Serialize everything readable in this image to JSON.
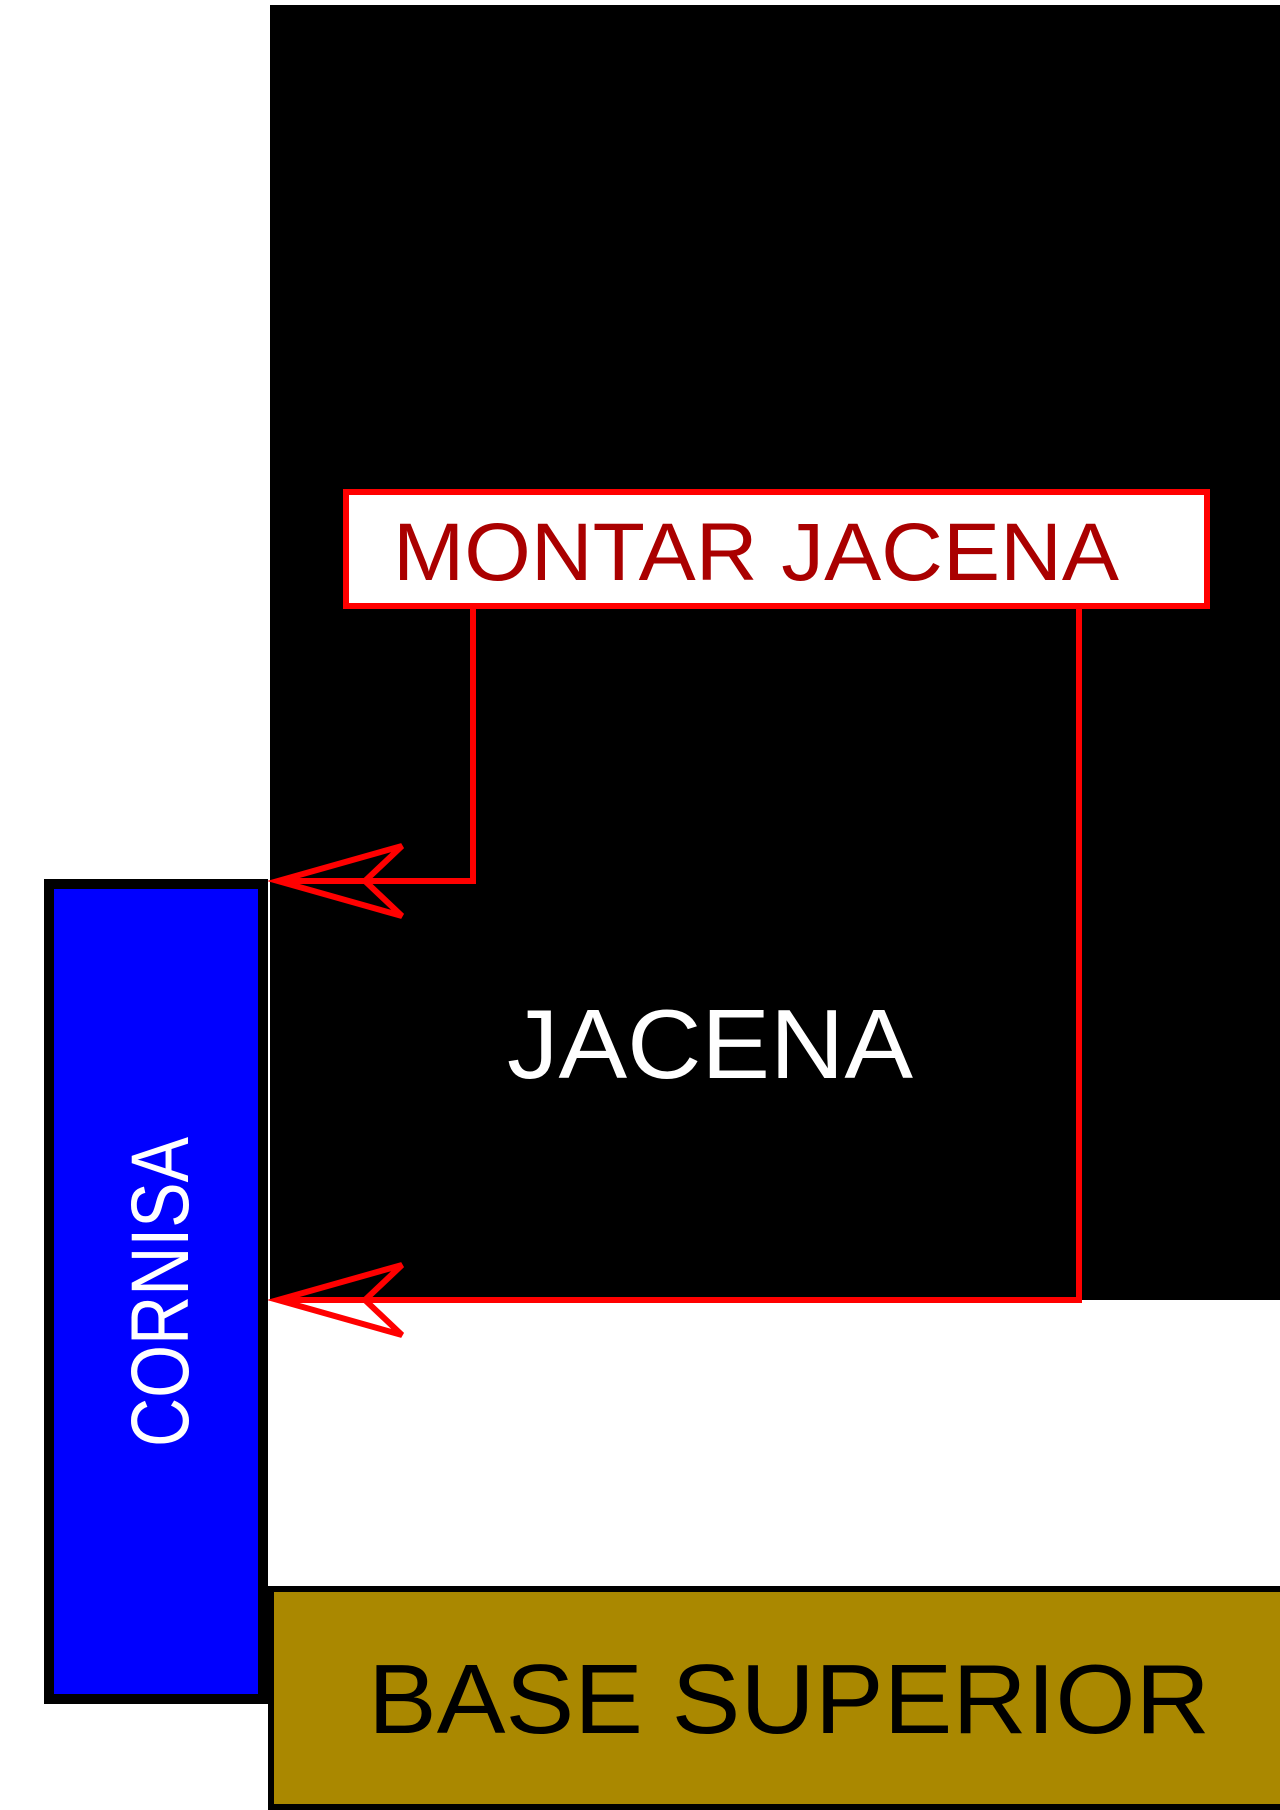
{
  "labels": {
    "jacena": "JACENA",
    "montar_jacena": "MONTAR JACENA",
    "cornisa": "CORNISA",
    "base_superior": "BASE SUPERIOR"
  },
  "colors": {
    "jacena_fill": "#000000",
    "jacena_text": "#ffffff",
    "callout_border": "#ff0000",
    "callout_text": "#aa0000",
    "cornisa_fill": "#0000ff",
    "cornisa_text": "#ffffff",
    "base_fill": "#aa8800",
    "base_text": "#000000",
    "outline": "#000000",
    "background": "#ffffff"
  }
}
